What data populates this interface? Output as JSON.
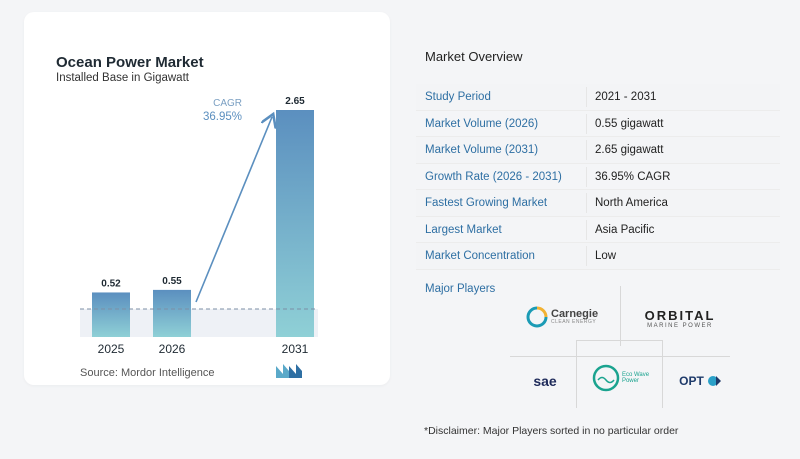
{
  "chart_data": {
    "type": "bar",
    "title": "Ocean Power Market",
    "subtitle": "Installed Base in Gigawatt",
    "categories": [
      "2025",
      "2026",
      "2031"
    ],
    "values": [
      0.52,
      0.55,
      2.65
    ],
    "value_labels": [
      "0.52",
      "0.55",
      "2.65"
    ],
    "annotation": {
      "label": "CAGR",
      "value": "36.95%"
    },
    "ylim": [
      0,
      2.65
    ],
    "colors": {
      "bar_top": "#5b8fbf",
      "bar_bottom": "#8fd0d6",
      "arrow": "#5b8fbf",
      "baseline": "#7c8fa6"
    }
  },
  "source": "Source: Mordor Intelligence",
  "overview": {
    "title": "Market Overview",
    "rows": [
      {
        "label": "Study Period",
        "value": "2021 - 2031"
      },
      {
        "label": "Market Volume (2026)",
        "value": "0.55 gigawatt"
      },
      {
        "label": "Market Volume (2031)",
        "value": "2.65 gigawatt"
      },
      {
        "label": "Growth Rate (2026 - 2031)",
        "value": "36.95% CAGR"
      },
      {
        "label": "Fastest Growing Market",
        "value": "North America"
      },
      {
        "label": "Largest Market",
        "value": "Asia Pacific"
      },
      {
        "label": "Market Concentration",
        "value": "Low"
      }
    ]
  },
  "players": {
    "title": "Major Players",
    "carnegie": {
      "name": "Carnegie",
      "sub": "CLEAN ENERGY"
    },
    "orbital": {
      "name": "ORBITAL",
      "sub": "MARINE POWER"
    },
    "sae": {
      "name": "sae"
    },
    "ecowave": {
      "name": "Eco Wave",
      "sub": "Power"
    },
    "opt": {
      "name": "OPT"
    }
  },
  "disclaimer": "*Disclaimer: Major Players sorted in no particular order"
}
